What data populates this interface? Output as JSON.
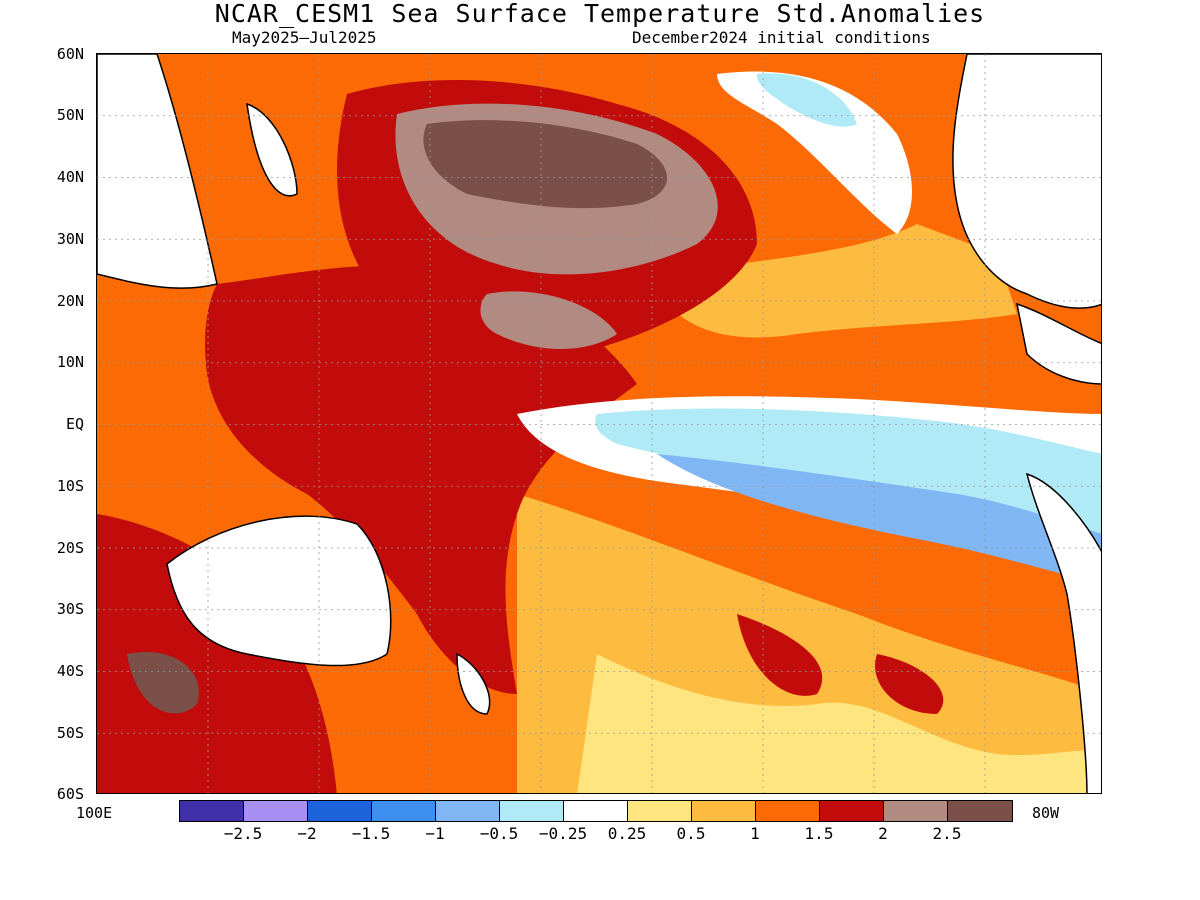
{
  "title": "NCAR_CESM1 Sea Surface Temperature Std.Anomalies",
  "subtitle_left": "May2025–Jul2025",
  "subtitle_right": "December2024 initial conditions",
  "lat_labels": [
    "60N",
    "50N",
    "40N",
    "30N",
    "20N",
    "10N",
    "EQ",
    "10S",
    "20S",
    "30S",
    "40S",
    "50S",
    "60S"
  ],
  "lon_left": "100E",
  "lon_right": "80W",
  "colorbar": {
    "colors": [
      "#3f2fa8",
      "#a78ff3",
      "#1d63dc",
      "#3f8ff0",
      "#7fb6f3",
      "#b0eaf6",
      "#ffffff",
      "#ffe580",
      "#fdbb40",
      "#fb6a05",
      "#c20c0c",
      "#b18b82",
      "#7a5048"
    ],
    "ticks": [
      "−2.5",
      "−2",
      "−1.5",
      "−1",
      "−0.5",
      "−0.25",
      "0.25",
      "0.5",
      "1",
      "1.5",
      "2",
      "2.5"
    ]
  },
  "palette": {
    "land": "#ffffff",
    "coast": "#000000",
    "grid": "#999999"
  },
  "chart_data": {
    "type": "heatmap",
    "title": "NCAR_CESM1 Sea Surface Temperature Std.Anomalies",
    "x_range": [
      "100E",
      "80W"
    ],
    "y_range": [
      "60S",
      "60N"
    ],
    "levels": [
      -2.5,
      -2,
      -1.5,
      -1,
      -0.5,
      -0.25,
      0.25,
      0.5,
      1,
      1.5,
      2,
      2.5
    ],
    "grid": true
  }
}
